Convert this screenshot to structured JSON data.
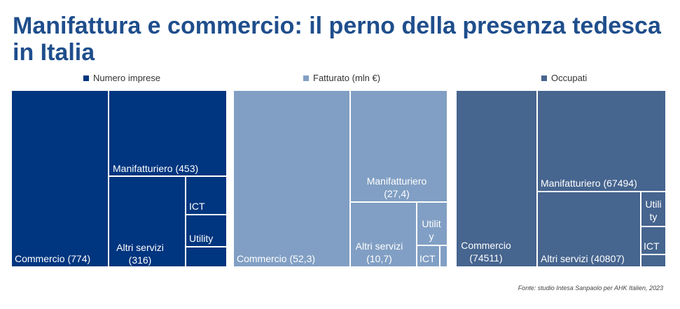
{
  "title": "Manifattura e commercio: il perno della presenza tedesca in Italia",
  "source": "Fonte: studio Intesa Sanpaolo per AHK Italien, 2023",
  "colors": {
    "numero": "#00357f",
    "fatturato": "#819fc4",
    "occupati": "#46658f",
    "title": "#1f4e8c"
  },
  "chart_data": [
    {
      "type": "treemap",
      "name": "Numero imprese",
      "items": [
        {
          "label": "Commercio (774)",
          "category": "Commercio",
          "value": 774
        },
        {
          "label": "Manifatturiero (453)",
          "category": "Manifatturiero",
          "value": 453
        },
        {
          "label": "Altri servizi\n(316)",
          "category": "Altri servizi",
          "value": 316
        },
        {
          "label": "ICT",
          "category": "ICT",
          "value": null
        },
        {
          "label": "Utility",
          "category": "Utility",
          "value": null
        },
        {
          "label": "",
          "category": "Altro",
          "value": null
        }
      ]
    },
    {
      "type": "treemap",
      "name": "Fatturato (mln €)",
      "items": [
        {
          "label": "Commercio (52,3)",
          "category": "Commercio",
          "value": 52.3
        },
        {
          "label": "Manifatturiero\n(27,4)",
          "category": "Manifatturiero",
          "value": 27.4
        },
        {
          "label": "Altri servizi\n(10,7)",
          "category": "Altri servizi",
          "value": 10.7
        },
        {
          "label": "Utilit\ny",
          "category": "Utility",
          "value": null
        },
        {
          "label": "ICT",
          "category": "ICT",
          "value": null
        },
        {
          "label": "",
          "category": "Altro",
          "value": null
        }
      ]
    },
    {
      "type": "treemap",
      "name": "Occupati",
      "items": [
        {
          "label": "Commercio\n(74511)",
          "category": "Commercio",
          "value": 74511
        },
        {
          "label": "Manifatturiero (67494)",
          "category": "Manifatturiero",
          "value": 67494
        },
        {
          "label": "Altri servizi (40807)",
          "category": "Altri servizi",
          "value": 40807
        },
        {
          "label": "Utili\nty",
          "category": "Utility",
          "value": null
        },
        {
          "label": "ICT",
          "category": "ICT",
          "value": null
        },
        {
          "label": "",
          "category": "Altro",
          "value": null
        }
      ]
    }
  ]
}
